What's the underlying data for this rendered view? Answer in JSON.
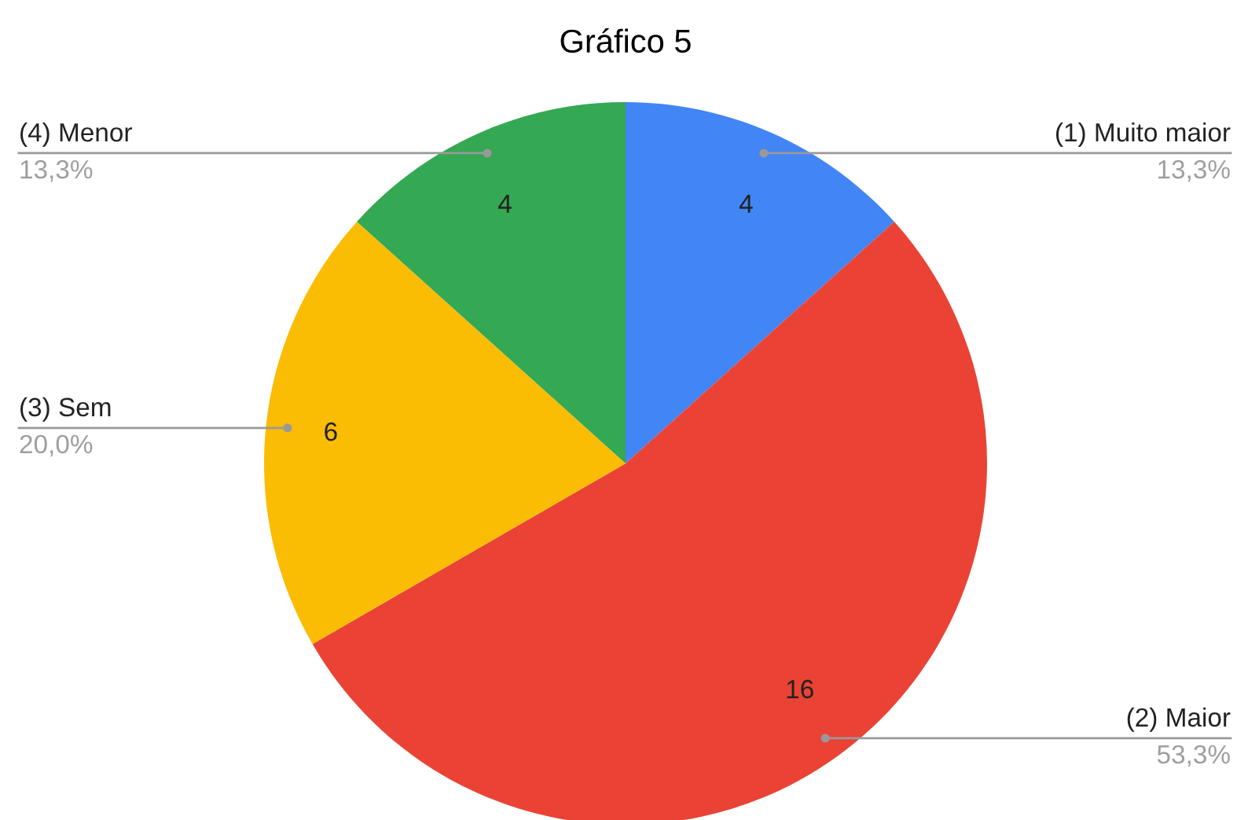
{
  "chart_data": {
    "type": "pie",
    "title": "Gráfico 5",
    "categories": [
      "(1) Muito maior",
      "(2) Maior",
      "(3) Sem",
      "(4) Menor"
    ],
    "values": [
      4,
      16,
      6,
      4
    ],
    "colors": [
      "#4285f4",
      "#ea4335",
      "#fbbc04",
      "#34a853"
    ],
    "data_labels": true,
    "annotations": [
      "13,3%",
      "53,3%",
      "20,0%",
      "13,3%"
    ]
  }
}
